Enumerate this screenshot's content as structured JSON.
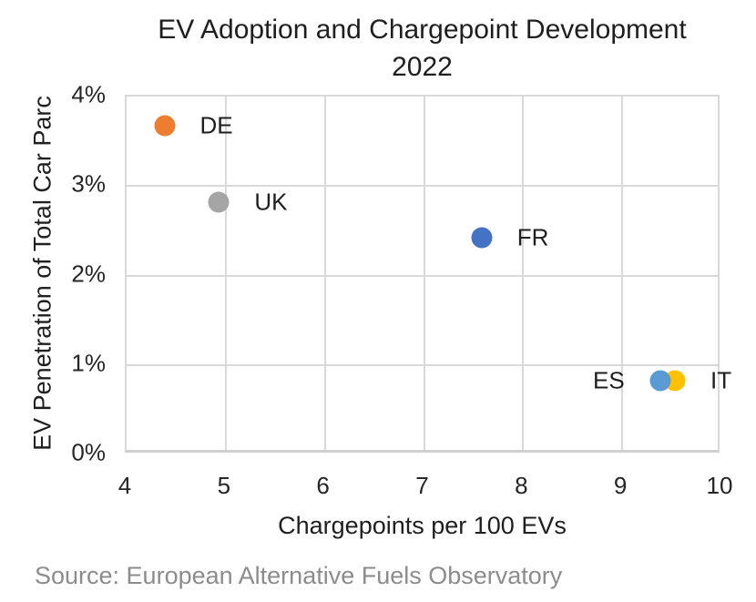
{
  "header": {
    "title_line1": "EV Adoption and Chargepoint Development",
    "title_line2": "2022"
  },
  "chart_data": {
    "type": "scatter",
    "title": "EV Adoption and Chargepoint Development 2022",
    "xlabel": "Chargepoints per 100 EVs",
    "ylabel": "EV Penetration of Total Car Parc",
    "xlim": [
      4,
      10
    ],
    "ylim": [
      0,
      4
    ],
    "grid": true,
    "gridline_color": "#d9d9d9",
    "xticks": [
      {
        "value": 4,
        "label": "4"
      },
      {
        "value": 5,
        "label": "5"
      },
      {
        "value": 6,
        "label": "6"
      },
      {
        "value": 7,
        "label": "7"
      },
      {
        "value": 8,
        "label": "8"
      },
      {
        "value": 9,
        "label": "9"
      },
      {
        "value": 10,
        "label": "10"
      }
    ],
    "yticks": [
      {
        "value": 0,
        "label": "0%"
      },
      {
        "value": 1,
        "label": "1%"
      },
      {
        "value": 2,
        "label": "2%"
      },
      {
        "value": 3,
        "label": "3%"
      },
      {
        "value": 4,
        "label": "4%"
      }
    ],
    "series": [
      {
        "name": "DE",
        "x": 4.4,
        "y": 3.65,
        "color": "#ED7D31",
        "label_side": "right"
      },
      {
        "name": "UK",
        "x": 4.95,
        "y": 2.8,
        "color": "#A5A5A5",
        "label_side": "right"
      },
      {
        "name": "FR",
        "x": 7.6,
        "y": 2.4,
        "color": "#4472C4",
        "label_side": "right"
      },
      {
        "name": "IT",
        "x": 9.55,
        "y": 0.8,
        "color": "#FFC000",
        "label_side": "right"
      },
      {
        "name": "ES",
        "x": 9.4,
        "y": 0.8,
        "color": "#5B9BD5",
        "label_side": "left"
      }
    ]
  },
  "footer": {
    "source": "Source: European Alternative Fuels Observatory"
  }
}
